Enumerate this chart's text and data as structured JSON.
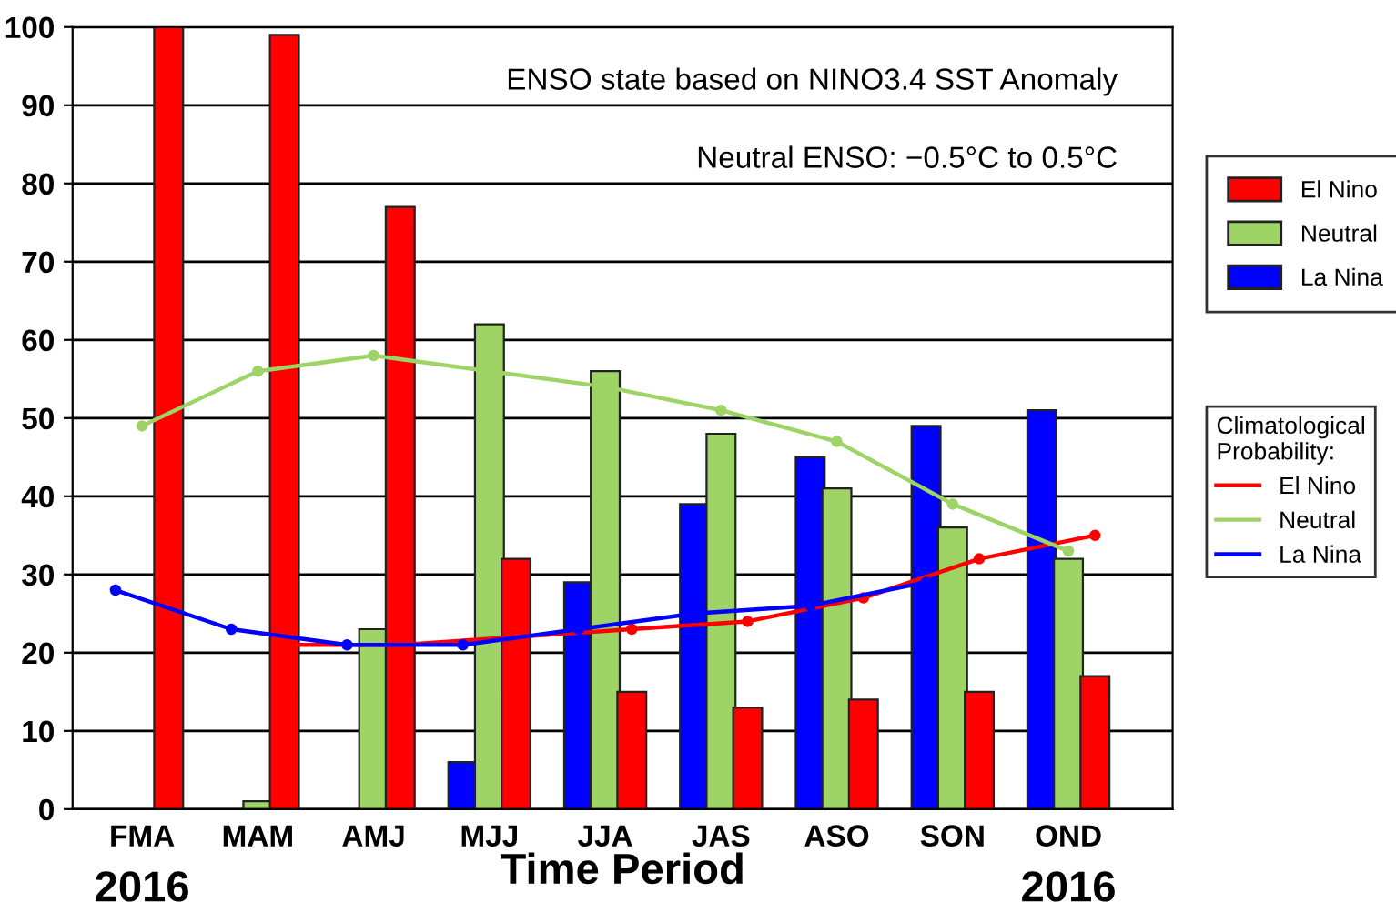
{
  "chart_data": {
    "type": "bar",
    "xlabel": "Time Period",
    "categories": [
      "FMA",
      "MAM",
      "AMJ",
      "MJJ",
      "JJA",
      "JAS",
      "ASO",
      "SON",
      "OND"
    ],
    "series": [
      {
        "name": "La Nina",
        "color": "#0000ff",
        "values": [
          null,
          null,
          null,
          6,
          29,
          39,
          45,
          49,
          51
        ]
      },
      {
        "name": "Neutral",
        "color": "#9dd465",
        "values": [
          null,
          1,
          23,
          62,
          56,
          48,
          41,
          36,
          32
        ]
      },
      {
        "name": "El Nino",
        "color": "#ff0000",
        "values": [
          100,
          99,
          77,
          32,
          15,
          13,
          14,
          15,
          17
        ]
      },
      {
        "name": "El Nino",
        "type": "line",
        "color": "#ff0000",
        "values": [
          null,
          21,
          21,
          22,
          23,
          24,
          27,
          32,
          35
        ]
      },
      {
        "name": "Neutral",
        "type": "line",
        "color": "#9dd465",
        "values": [
          49,
          56,
          58,
          56,
          54,
          51,
          47,
          39,
          33
        ]
      },
      {
        "name": "La Nina",
        "type": "line",
        "color": "#0000ff",
        "values": [
          28,
          23,
          21,
          21,
          23,
          25,
          26,
          29,
          null
        ]
      }
    ],
    "legend_title": "Climatological\nProbability:",
    "ylim": [
      0,
      100
    ],
    "yticks": [
      0,
      10,
      20,
      30,
      40,
      50,
      60,
      70,
      80,
      90,
      100
    ],
    "grid": "y",
    "legend": "right",
    "marker": "circle",
    "line_style": "solid",
    "annotations": [
      "ENSO state based on NINO3.4 SST Anomaly",
      "Neutral ENSO: −0.5°C to 0.5°C",
      "2016",
      "2016"
    ]
  }
}
